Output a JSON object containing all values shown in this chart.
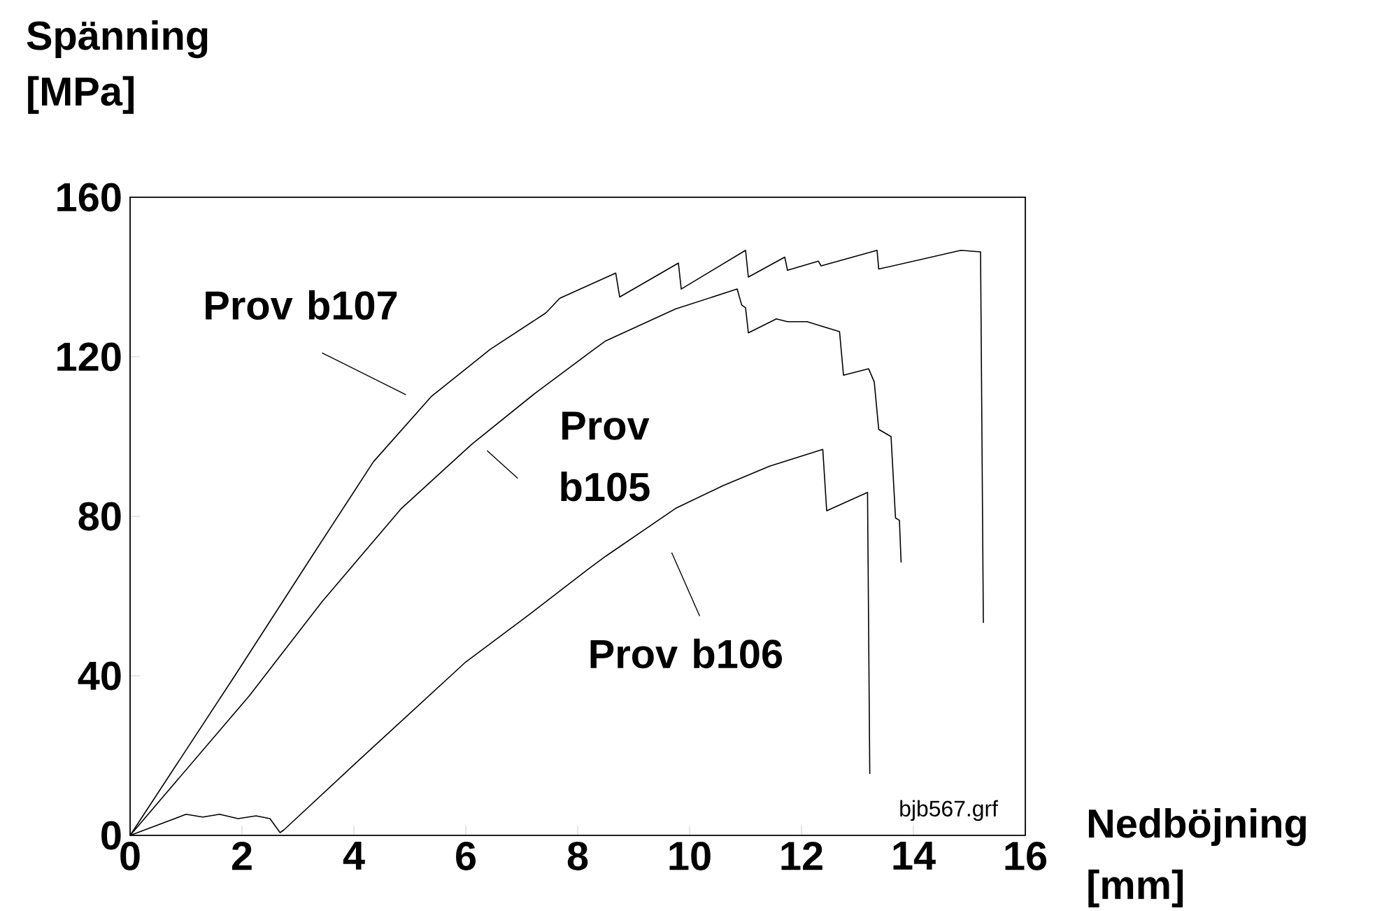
{
  "chart_data": {
    "type": "line",
    "xlabel": "Nedböjning [mm]",
    "ylabel": "Spänning [MPa]",
    "xlim": [
      0,
      16
    ],
    "ylim": [
      0,
      160
    ],
    "xticks": [
      0,
      2,
      4,
      6,
      8,
      10,
      12,
      14,
      16
    ],
    "yticks": [
      0,
      40,
      80,
      120,
      160
    ],
    "annotations": [
      "bjb567.grf"
    ],
    "series": [
      {
        "name": "Prov b107",
        "color": "#000000",
        "x": [
          0,
          1.87,
          3.25,
          4.35,
          5.38,
          6.43,
          7.43,
          7.68,
          8.68,
          8.75,
          9.8,
          9.85,
          11.0,
          11.05,
          11.7,
          11.75,
          12.3,
          12.35,
          13.35,
          13.38,
          14.85,
          15.2,
          15.25
        ],
        "values": [
          0,
          40,
          70,
          93.7,
          110,
          121.8,
          131,
          134.7,
          141,
          135,
          143.5,
          137,
          146.7,
          140,
          145,
          141.7,
          144,
          142.8,
          146.7,
          142,
          146.7,
          146.3,
          53.3
        ]
      },
      {
        "name": "Prov b105",
        "color": "#000000",
        "x": [
          0,
          2.13,
          3.43,
          4.85,
          6.1,
          7.25,
          8.18,
          8.5,
          9.75,
          10.85,
          10.93,
          11.0,
          11.05,
          11.55,
          11.75,
          12.1,
          12.68,
          12.75,
          13.2,
          13.3,
          13.38,
          13.6,
          13.68,
          13.75,
          13.78
        ],
        "values": [
          0,
          35,
          58.6,
          82,
          98,
          111,
          120.7,
          124,
          132,
          137,
          133,
          132.3,
          126,
          129.5,
          128.8,
          128.8,
          126.3,
          115.4,
          117,
          113.7,
          101.8,
          100,
          79.6,
          79,
          68.4
        ]
      },
      {
        "name": "Prov b106",
        "color": "#000000",
        "x": [
          0,
          1.0,
          1.3,
          1.6,
          1.93,
          2.25,
          2.5,
          2.68,
          2.75,
          4.1,
          6,
          7.1,
          8.18,
          8.5,
          9.75,
          10.6,
          11.43,
          12.38,
          12.45,
          13.18,
          13.22
        ],
        "values": [
          0,
          5.3,
          4.6,
          5.3,
          4.2,
          4.9,
          4.2,
          0.7,
          1.4,
          19,
          43.5,
          55,
          66.7,
          70,
          82,
          87.7,
          92.6,
          96.8,
          81.4,
          86,
          15.4
        ]
      }
    ]
  }
}
